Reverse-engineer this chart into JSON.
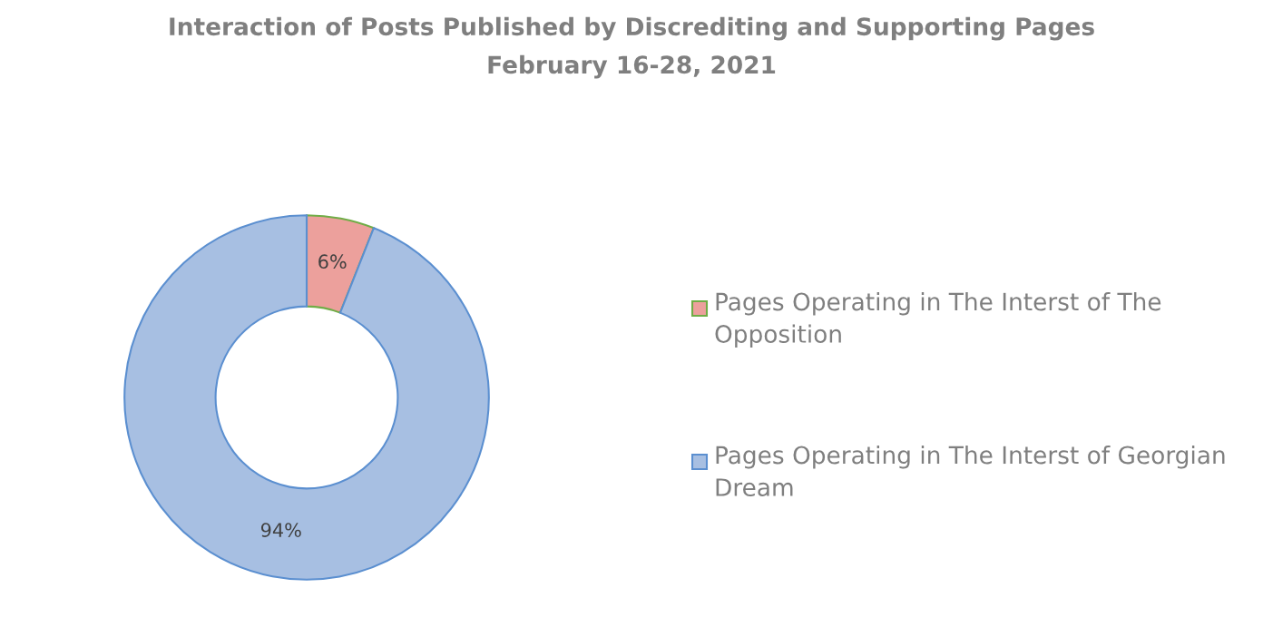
{
  "chart_data": {
    "type": "donut",
    "title": "Interaction of Posts Published by Discrediting and Supporting Pages",
    "subtitle": "February 16-28, 2021",
    "categories": [
      "Pages Operating in The Interst of The Opposition",
      "Pages Operating in The Interst of Georgian Dream"
    ],
    "values": [
      6,
      94
    ],
    "value_labels": [
      "6%",
      "94%"
    ],
    "colors": [
      "#eca09c",
      "#a7bfe2"
    ],
    "legend": "right"
  }
}
